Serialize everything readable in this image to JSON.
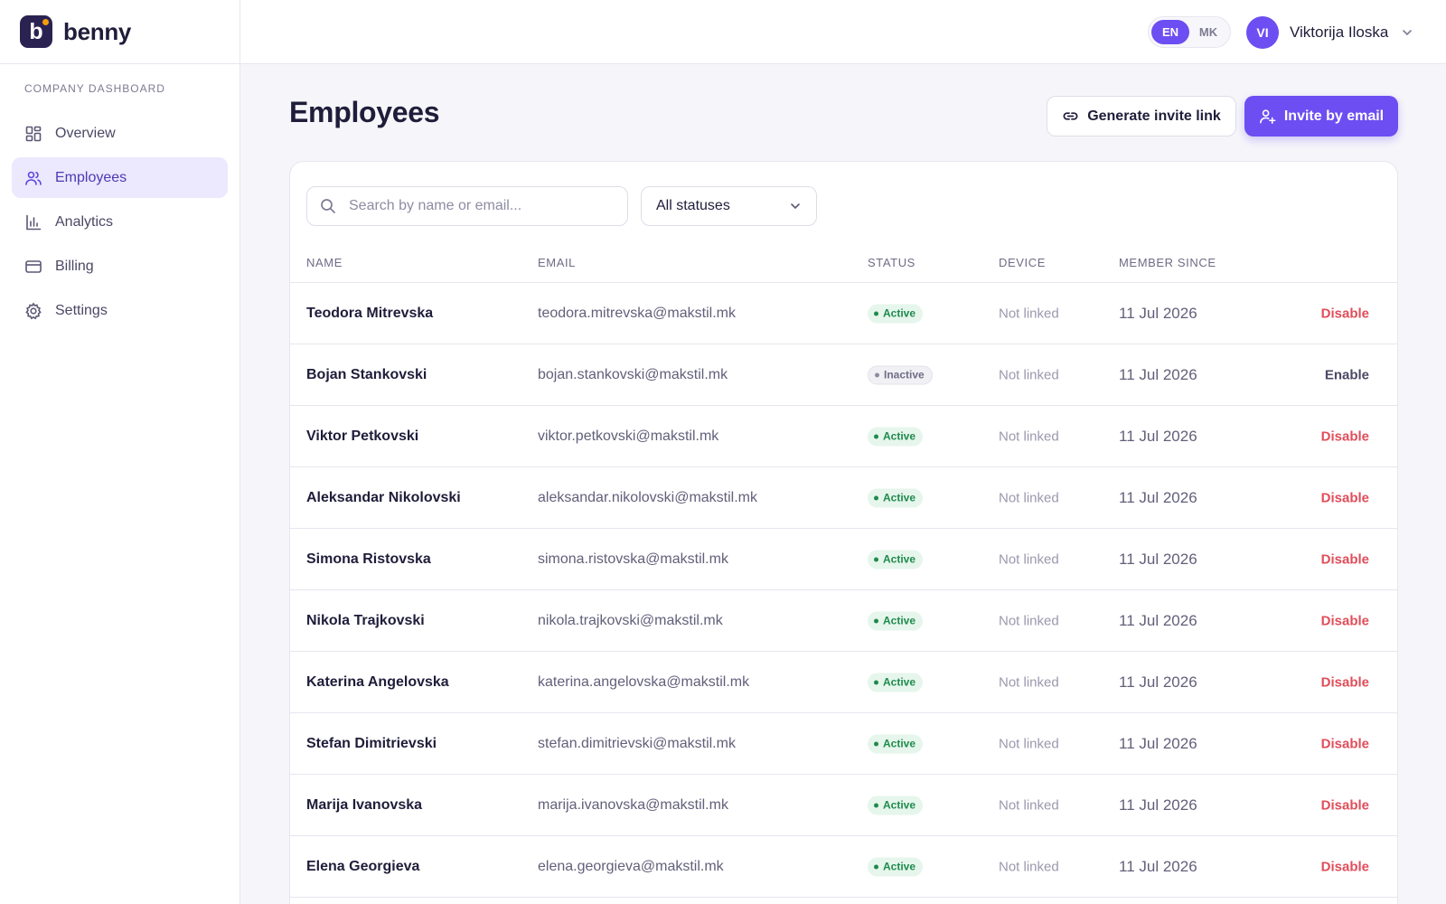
{
  "brand": {
    "logo_letter": "b",
    "name": "benny"
  },
  "sidebar": {
    "section_label": "COMPANY DASHBOARD",
    "items": [
      {
        "label": "Overview",
        "icon": "grid-icon"
      },
      {
        "label": "Employees",
        "icon": "users-icon",
        "active": true
      },
      {
        "label": "Analytics",
        "icon": "bar-chart-icon"
      },
      {
        "label": "Billing",
        "icon": "credit-card-icon"
      },
      {
        "label": "Settings",
        "icon": "gear-icon"
      }
    ]
  },
  "header": {
    "languages": [
      "EN",
      "MK"
    ],
    "active_language": "EN",
    "user": {
      "initials": "VI",
      "name": "Viktorija Iloska"
    }
  },
  "main": {
    "title": "Employees",
    "generate_link_label": "Generate invite link",
    "invite_email_label": "Invite by email",
    "search_placeholder": "Search by name or email...",
    "status_filter": "All statuses",
    "columns": {
      "name": "NAME",
      "email": "EMAIL",
      "status": "STATUS",
      "device": "DEVICE",
      "member_since": "MEMBER SINCE"
    },
    "rows": [
      {
        "name": "Teodora Mitrevska",
        "email": "teodora.mitrevska@makstil.mk",
        "status": "Active",
        "device": "Not linked",
        "member_since": "11 Jul 2026",
        "action": "Disable"
      },
      {
        "name": "Bojan Stankovski",
        "email": "bojan.stankovski@makstil.mk",
        "status": "Inactive",
        "device": "Not linked",
        "member_since": "11 Jul 2026",
        "action": "Enable"
      },
      {
        "name": "Viktor Petkovski",
        "email": "viktor.petkovski@makstil.mk",
        "status": "Active",
        "device": "Not linked",
        "member_since": "11 Jul 2026",
        "action": "Disable"
      },
      {
        "name": "Aleksandar Nikolovski",
        "email": "aleksandar.nikolovski@makstil.mk",
        "status": "Active",
        "device": "Not linked",
        "member_since": "11 Jul 2026",
        "action": "Disable"
      },
      {
        "name": "Simona Ristovska",
        "email": "simona.ristovska@makstil.mk",
        "status": "Active",
        "device": "Not linked",
        "member_since": "11 Jul 2026",
        "action": "Disable"
      },
      {
        "name": "Nikola Trajkovski",
        "email": "nikola.trajkovski@makstil.mk",
        "status": "Active",
        "device": "Not linked",
        "member_since": "11 Jul 2026",
        "action": "Disable"
      },
      {
        "name": "Katerina Angelovska",
        "email": "katerina.angelovska@makstil.mk",
        "status": "Active",
        "device": "Not linked",
        "member_since": "11 Jul 2026",
        "action": "Disable"
      },
      {
        "name": "Stefan Dimitrievski",
        "email": "stefan.dimitrievski@makstil.mk",
        "status": "Active",
        "device": "Not linked",
        "member_since": "11 Jul 2026",
        "action": "Disable"
      },
      {
        "name": "Marija Ivanovska",
        "email": "marija.ivanovska@makstil.mk",
        "status": "Active",
        "device": "Not linked",
        "member_since": "11 Jul 2026",
        "action": "Disable"
      },
      {
        "name": "Elena Georgieva",
        "email": "elena.georgieva@makstil.mk",
        "status": "Active",
        "device": "Not linked",
        "member_since": "11 Jul 2026",
        "action": "Disable"
      }
    ]
  },
  "colors": {
    "accent": "#6c4ef2",
    "sidebar_active_bg": "#ece8fd",
    "active_badge": "#1f8a4c",
    "disable_action": "#e14d5a"
  }
}
